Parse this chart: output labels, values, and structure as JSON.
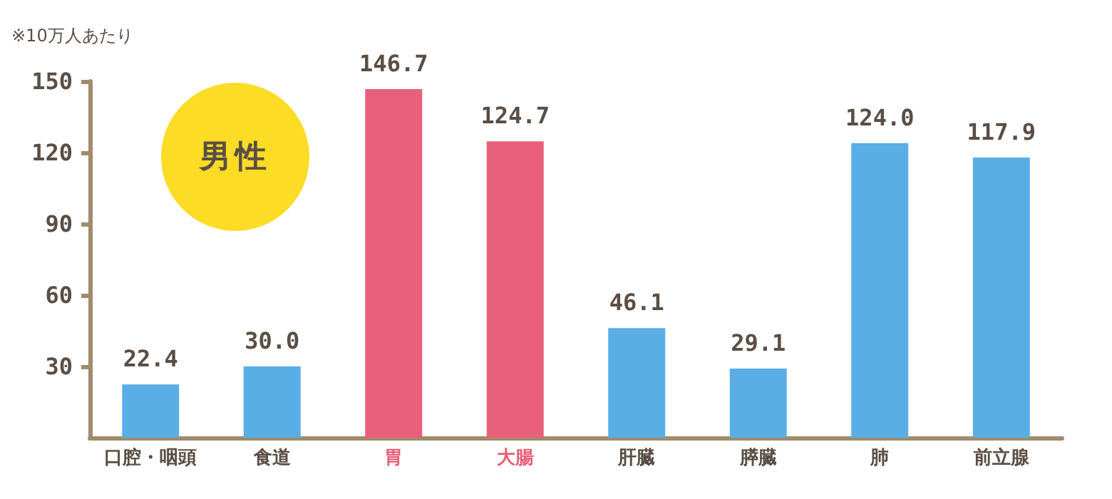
{
  "chart_data": {
    "type": "bar",
    "ylabel": "※10万人あたり",
    "annotations": [
      "男性"
    ],
    "categories": [
      "口腔・咽頭",
      "食道",
      "胃",
      "大腸",
      "肝臓",
      "膵臓",
      "肺",
      "前立腺"
    ],
    "values": [
      22.4,
      30.0,
      146.7,
      124.7,
      46.1,
      29.1,
      124.0,
      117.9
    ],
    "value_labels": [
      "22.4",
      "30.0",
      "146.7",
      "124.7",
      "46.1",
      "29.1",
      "124.0",
      "117.9"
    ],
    "colors": [
      "#5aaee6",
      "#5aaee6",
      "#e8607a",
      "#e8607a",
      "#5aaee6",
      "#5aaee6",
      "#5aaee6",
      "#5aaee6"
    ],
    "ylim": [
      0,
      150
    ],
    "yticks": [
      30,
      60,
      90,
      120,
      150
    ],
    "grid": false
  }
}
